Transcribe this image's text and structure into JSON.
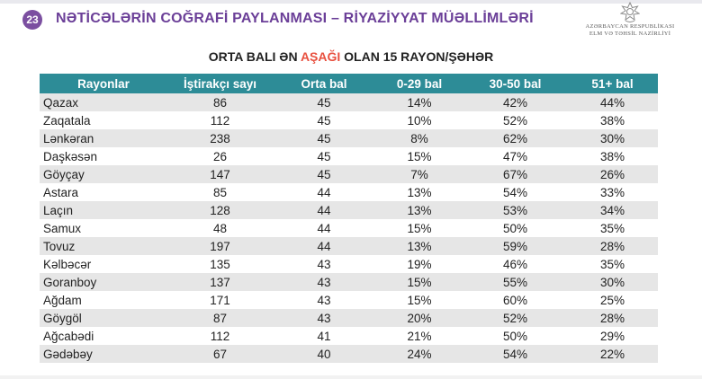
{
  "header": {
    "top_strip_text": "",
    "slide_number": "23",
    "title": "NƏTİCƏLƏRİN COĞRAFİ PAYLANMASI – RİYAZİYYAT MÜƏLLİMLƏRİ",
    "logo": {
      "line1": "AZƏRBAYCAN RESPUBLİKASI",
      "line2": "ELM VƏ TƏHSİL NAZİRLİYİ"
    }
  },
  "table_title": {
    "before": "ORTA BALI ƏN ",
    "accent": "AŞAĞI",
    "after": " OLAN 15 RAYON/ŞƏHƏR"
  },
  "colors": {
    "accent_title": "#6b3f98",
    "accent_word": "#e8503f",
    "header_bg": "#2d8c97",
    "row_stripe": "#e6e6e6"
  },
  "table": {
    "columns": [
      "Rayonlar",
      "İştirakçı sayı",
      "Orta bal",
      "0-29 bal",
      "30-50 bal",
      "51+ bal"
    ],
    "rows": [
      [
        "Qazax",
        "86",
        "45",
        "14%",
        "42%",
        "44%"
      ],
      [
        "Zaqatala",
        "112",
        "45",
        "10%",
        "52%",
        "38%"
      ],
      [
        "Lənkəran",
        "238",
        "45",
        "8%",
        "62%",
        "30%"
      ],
      [
        "Daşkəsən",
        "26",
        "45",
        "15%",
        "47%",
        "38%"
      ],
      [
        "Göyçay",
        "147",
        "45",
        "7%",
        "67%",
        "26%"
      ],
      [
        "Astara",
        "85",
        "44",
        "13%",
        "54%",
        "33%"
      ],
      [
        "Laçın",
        "128",
        "44",
        "13%",
        "53%",
        "34%"
      ],
      [
        "Samux",
        "48",
        "44",
        "15%",
        "50%",
        "35%"
      ],
      [
        "Tovuz",
        "197",
        "44",
        "13%",
        "59%",
        "28%"
      ],
      [
        "Kəlbəcər",
        "135",
        "43",
        "19%",
        "46%",
        "35%"
      ],
      [
        "Goranboy",
        "137",
        "43",
        "15%",
        "55%",
        "30%"
      ],
      [
        "Ağdam",
        "171",
        "43",
        "15%",
        "60%",
        "25%"
      ],
      [
        "Göygöl",
        "87",
        "43",
        "20%",
        "52%",
        "28%"
      ],
      [
        "Ağcabədi",
        "112",
        "41",
        "21%",
        "50%",
        "29%"
      ],
      [
        "Gədəbəy",
        "67",
        "40",
        "24%",
        "54%",
        "22%"
      ]
    ]
  }
}
